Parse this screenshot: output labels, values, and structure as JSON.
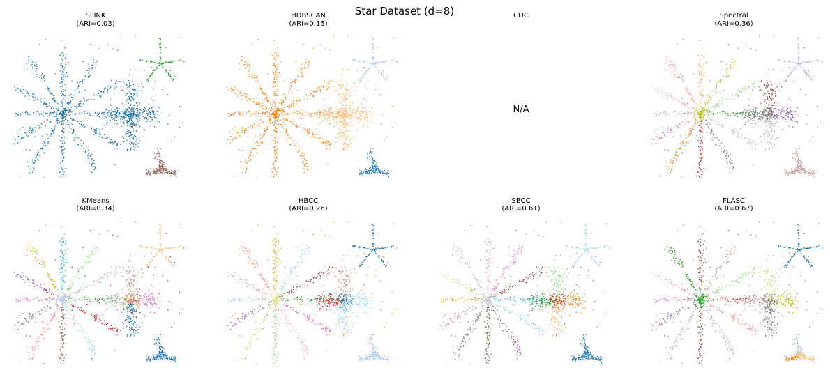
{
  "chart_data": {
    "type": "scatter",
    "title": "Star Dataset (d=8)",
    "grid": false,
    "axes_visible": false,
    "panels": [
      {
        "name": "slink",
        "method": "SLINK",
        "ari_label": "(ARI=0.03)",
        "available": true,
        "colors": {
          "big_star": "#1f77b4",
          "cross": "#1f77b4",
          "small_star": "#2ca02c",
          "tripod": "#8c564b",
          "noise": "#1f77b4"
        }
      },
      {
        "name": "hdbscan",
        "method": "HDBSCAN",
        "ari_label": "(ARI=0.15)",
        "available": true,
        "colors": {
          "big_star": "#ff7f0e",
          "cross": "#ffbb78",
          "small_star": "#aec7e8",
          "tripod": "#1f77b4",
          "noise": "#ff7f0e"
        }
      },
      {
        "name": "cdc",
        "method": "CDC",
        "ari_label": "",
        "available": false,
        "na_text": "N/A"
      },
      {
        "name": "spectral",
        "method": "Spectral",
        "ari_label": "(ARI=0.36)",
        "available": true,
        "colors": {
          "arms": [
            "#d62728",
            "#ff7f0e",
            "#e377c2",
            "#c5b0d5",
            "#f7b6d2",
            "#ff9896",
            "#ffbb78",
            "#bcbd22",
            "#98df8a",
            "#2ca02c",
            "#c7c7c7",
            "#7f7f7f"
          ],
          "center": "#bcbd22",
          "cross": [
            "#7f7f7f",
            "#9467bd",
            "#8c564b",
            "#c7c7c7"
          ],
          "small_star": "#c5b0d5",
          "tripod": "#c49c94",
          "noise": "#7f7f7f"
        }
      },
      {
        "name": "kmeans",
        "method": "KMeans",
        "ari_label": "(ARI=0.34)",
        "available": true,
        "colors": {
          "arms": [
            "#8c564b",
            "#ff9896",
            "#7f7f7f",
            "#e377c2",
            "#9467bd",
            "#bcbd22",
            "#17becf",
            "#98df8a",
            "#c5b0d5",
            "#2ca02c",
            "#d62728",
            "#9edae5"
          ],
          "center": "#aec7e8",
          "cross": [
            "#c7c7c7",
            "#e377c2",
            "#c49c94",
            "#1f77b4"
          ],
          "cross_center": "#ff7f0e",
          "small_star": "#ffbb78",
          "tripod": "#1f77b4",
          "noise": "#d62728"
        }
      },
      {
        "name": "hbcc",
        "method": "HBCC",
        "ari_label": "(ARI=0.26)",
        "available": true,
        "colors": {
          "arms": [
            "#98df8a",
            "#dbdb8d",
            "#9467bd",
            "#9edae5",
            "#c5b0d5",
            "#ff9896",
            "#bcbd22",
            "#9edae5",
            "#8c564b",
            "#2ca02c",
            "#e377c2",
            "#f7b6d2"
          ],
          "center": "#dbdb8d",
          "cross": [
            "#d62728",
            "#9edae5",
            "#c49c94",
            "#9edae5"
          ],
          "cross_center": "#1f77b4",
          "small_star": "#1f77b4",
          "tripod": "#aec7e8",
          "noise": "#ff7f0e"
        }
      },
      {
        "name": "sbcc",
        "method": "SBCC",
        "ari_label": "(ARI=0.61)",
        "available": true,
        "colors": {
          "arms": [
            "#8c564b",
            "#7f7f7f",
            "#c49c94",
            "#bcbd22",
            "#dbdb8d",
            "#c7c7c7",
            "#f7b6d2",
            "#e377c2",
            "#8c564b",
            "#17becf",
            "#9edae5",
            "#9467bd"
          ],
          "center": "#c7c7c7",
          "cross": [
            "#2ca02c",
            "#ff7f0e",
            "#98df8a",
            "#ffbb78"
          ],
          "cross_center": "#d62728",
          "small_star": "#9edae5",
          "tripod": "#1f77b4",
          "noise": "#7f7f7f"
        }
      },
      {
        "name": "flasc",
        "method": "FLASC",
        "ari_label": "(ARI=0.67)",
        "available": true,
        "colors": {
          "arms": [
            "#8c564b",
            "#c5b0d5",
            "#9467bd",
            "#e377c2",
            "#f7b6d2",
            "#2ca02c",
            "#8c564b",
            "#c49c94",
            "#98df8a",
            "#d62728",
            "#ff9896",
            "#c5b0d5"
          ],
          "center": "#2ca02c",
          "cross": [
            "#c7c7c7",
            "#bcbd22",
            "#dbdb8d",
            "#7f7f7f"
          ],
          "cross_center": "#7f7f7f",
          "small_star": "#1f77b4",
          "tripod": "#ffbb78",
          "tripod_arm": "#ff7f0e",
          "tripod_top": "#aec7e8",
          "noise": "#7f7f7f"
        }
      }
    ]
  }
}
